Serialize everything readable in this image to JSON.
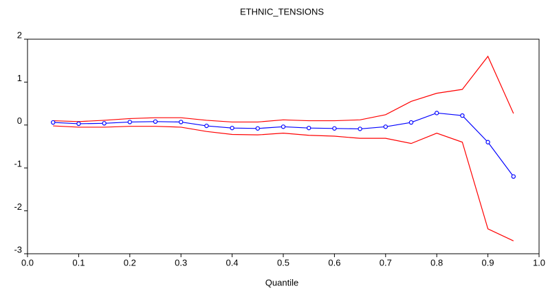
{
  "chart_data": {
    "type": "line",
    "title": "ETHNIC_TENSIONS",
    "x_label": "Quantile",
    "x": [
      0.05,
      0.1,
      0.15,
      0.2,
      0.25,
      0.3,
      0.35,
      0.4,
      0.45,
      0.5,
      0.55,
      0.6,
      0.65,
      0.7,
      0.75,
      0.8,
      0.85,
      0.9,
      0.95
    ],
    "series": [
      {
        "color": "#ff0000",
        "markers": false,
        "values": [
          0.1,
          0.08,
          0.11,
          0.15,
          0.17,
          0.17,
          0.11,
          0.07,
          0.07,
          0.12,
          0.1,
          0.1,
          0.12,
          0.24,
          0.55,
          0.74,
          0.83,
          1.6,
          0.27
        ]
      },
      {
        "color": "#0000ff",
        "markers": true,
        "values": [
          0.06,
          0.03,
          0.04,
          0.07,
          0.08,
          0.07,
          -0.02,
          -0.07,
          -0.08,
          -0.04,
          -0.07,
          -0.08,
          -0.09,
          -0.04,
          0.06,
          0.28,
          0.22,
          -0.4,
          -1.2
        ]
      },
      {
        "color": "#ff0000",
        "markers": false,
        "values": [
          -0.02,
          -0.05,
          -0.05,
          -0.03,
          -0.03,
          -0.05,
          -0.15,
          -0.22,
          -0.23,
          -0.19,
          -0.24,
          -0.26,
          -0.31,
          -0.31,
          -0.43,
          -0.19,
          -0.4,
          -2.42,
          -2.7
        ]
      }
    ],
    "xlim": [
      0.0,
      1.0
    ],
    "xticks": [
      {
        "value": 0.0,
        "label": "0.0"
      },
      0.1,
      0.2,
      0.3,
      0.4,
      0.5,
      0.6,
      0.7,
      0.8,
      0.9,
      {
        "value": 1.0,
        "label": "1.0"
      }
    ],
    "ylim": [
      -3,
      2
    ],
    "yticks": [
      2,
      1,
      0,
      -1,
      -2,
      -3
    ]
  }
}
